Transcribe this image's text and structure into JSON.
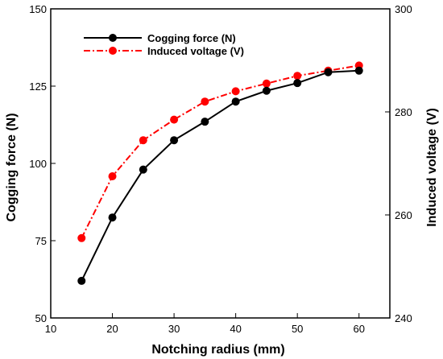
{
  "chart_data": {
    "type": "line",
    "x": [
      15,
      20,
      25,
      30,
      35,
      40,
      45,
      50,
      55,
      60
    ],
    "xlabel": "Notching radius (mm)",
    "xlim": [
      10,
      65
    ],
    "xticks": [
      10,
      20,
      30,
      40,
      50,
      60
    ],
    "grid": false,
    "legend_position": "top-left",
    "left_axis": {
      "label": "Cogging force (N)",
      "lim": [
        50,
        150
      ],
      "ticks": [
        50,
        75,
        100,
        125,
        150
      ]
    },
    "right_axis": {
      "label": "Induced voltage (V)",
      "lim": [
        240,
        300
      ],
      "ticks": [
        240,
        260,
        280,
        300
      ]
    },
    "series": [
      {
        "name": "Cogging force (N)",
        "axis": "left",
        "color": "#000000",
        "line_style": "solid",
        "values": [
          62,
          82.5,
          98,
          107.5,
          113.5,
          120,
          123.5,
          126,
          129.5,
          130
        ]
      },
      {
        "name": "Induced voltage (V)",
        "axis": "right",
        "color": "#ff0000",
        "line_style": "dash-dot",
        "values": [
          255.5,
          267.5,
          274.5,
          278.5,
          282,
          284,
          285.5,
          287,
          288,
          289
        ]
      }
    ]
  }
}
